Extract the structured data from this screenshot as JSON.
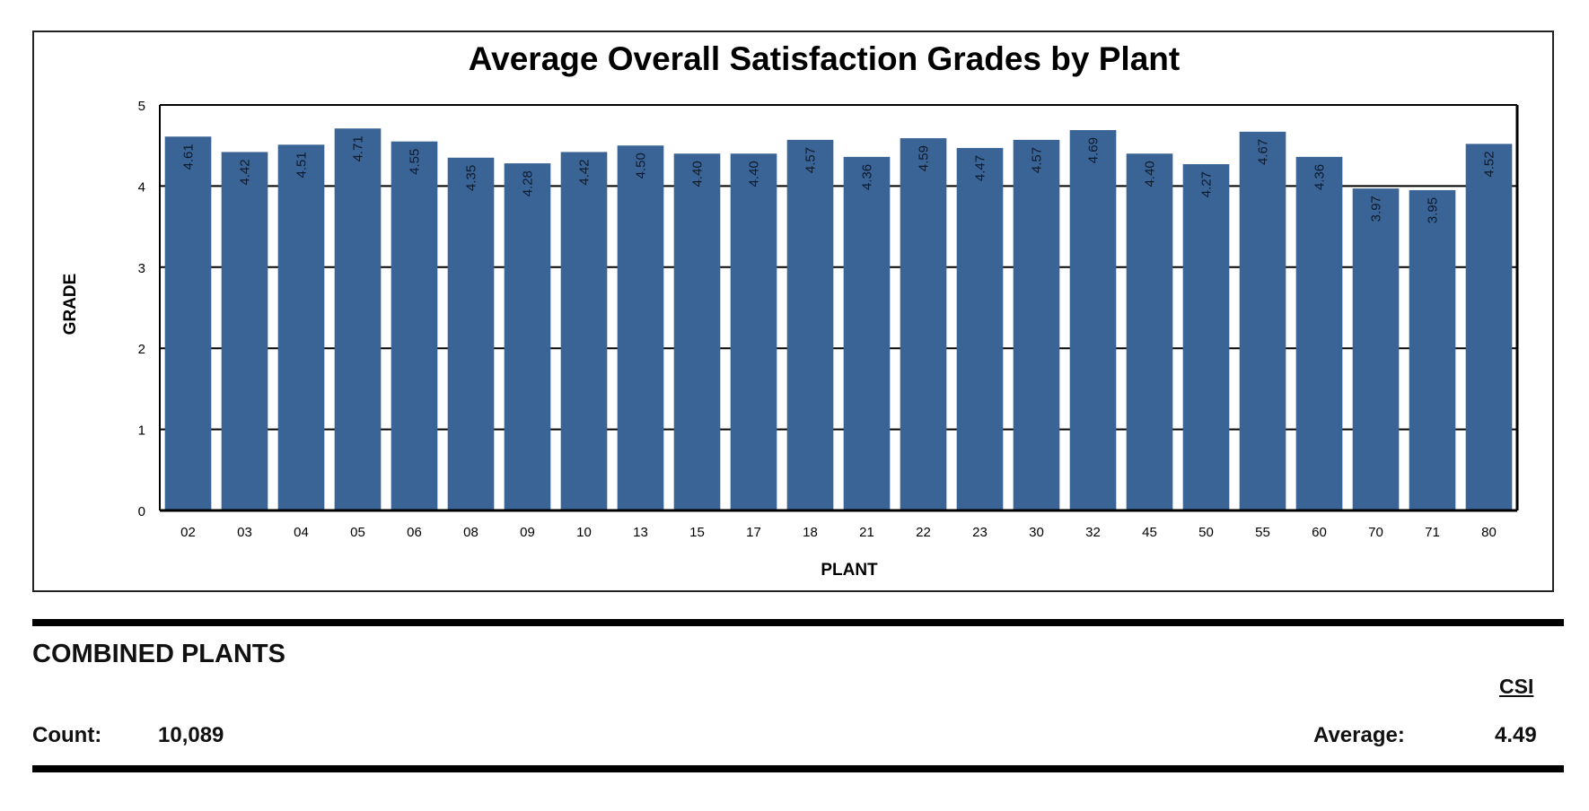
{
  "chart_data": {
    "type": "bar",
    "title": "Average Overall Satisfaction Grades by Plant",
    "xlabel": "PLANT",
    "ylabel": "GRADE",
    "ylim": [
      0,
      5
    ],
    "yticks": [
      "0",
      "1",
      "2",
      "3",
      "4",
      "5"
    ],
    "grid": true,
    "categories": [
      "02",
      "03",
      "04",
      "05",
      "06",
      "08",
      "09",
      "10",
      "13",
      "15",
      "17",
      "18",
      "21",
      "22",
      "23",
      "30",
      "32",
      "45",
      "50",
      "55",
      "60",
      "70",
      "71",
      "80"
    ],
    "values": [
      4.61,
      4.42,
      4.51,
      4.71,
      4.55,
      4.35,
      4.28,
      4.42,
      4.5,
      4.4,
      4.4,
      4.57,
      4.36,
      4.59,
      4.47,
      4.57,
      4.69,
      4.4,
      4.27,
      4.67,
      4.36,
      3.97,
      3.95,
      4.52
    ],
    "value_labels": [
      "4.61",
      "4.42",
      "4.51",
      "4.71",
      "4.55",
      "4.35",
      "4.28",
      "4.42",
      "4.50",
      "4.40",
      "4.40",
      "4.57",
      "4.36",
      "4.59",
      "4.47",
      "4.57",
      "4.69",
      "4.40",
      "4.27",
      "4.67",
      "4.36",
      "3.97",
      "3.95",
      "4.52"
    ],
    "bar_color": "#3b6496",
    "label_color": "#0d1a2b"
  },
  "summary": {
    "heading": "COMBINED PLANTS",
    "csi_heading": "CSI",
    "count_label": "Count:",
    "count_value": "10,089",
    "average_label": "Average:",
    "average_value": "4.49"
  }
}
